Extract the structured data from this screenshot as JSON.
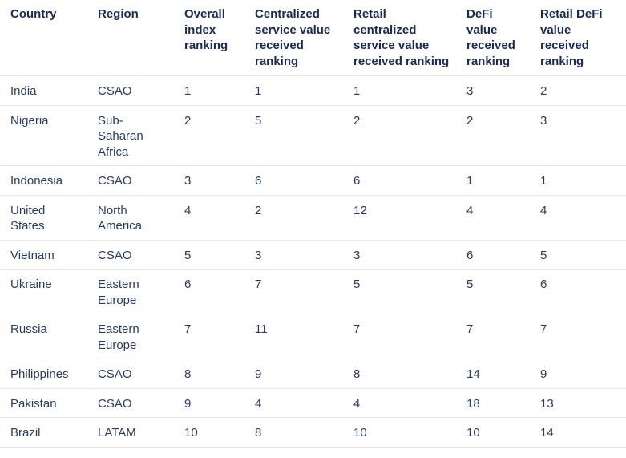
{
  "table": {
    "headers": [
      "Country",
      "Region",
      "Overall index ranking",
      "Centralized service value received ranking",
      "Retail centralized service value received ranking",
      "DeFi value received ranking",
      "Retail DeFi value received ranking"
    ],
    "rows": [
      [
        "India",
        "CSAO",
        "1",
        "1",
        "1",
        "3",
        "2"
      ],
      [
        "Nigeria",
        "Sub-Saharan Africa",
        "2",
        "5",
        "2",
        "2",
        "3"
      ],
      [
        "Indonesia",
        "CSAO",
        "3",
        "6",
        "6",
        "1",
        "1"
      ],
      [
        "United States",
        "North America",
        "4",
        "2",
        "12",
        "4",
        "4"
      ],
      [
        "Vietnam",
        "CSAO",
        "5",
        "3",
        "3",
        "6",
        "5"
      ],
      [
        "Ukraine",
        "Eastern Europe",
        "6",
        "7",
        "5",
        "5",
        "6"
      ],
      [
        "Russia",
        "Eastern Europe",
        "7",
        "11",
        "7",
        "7",
        "7"
      ],
      [
        "Philippines",
        "CSAO",
        "8",
        "9",
        "8",
        "14",
        "9"
      ],
      [
        "Pakistan",
        "CSAO",
        "9",
        "4",
        "4",
        "18",
        "13"
      ],
      [
        "Brazil",
        "LATAM",
        "10",
        "8",
        "10",
        "10",
        "14"
      ]
    ]
  },
  "colors": {
    "header_text": "#1a2a57",
    "body_text": "#2a3a68",
    "row_divider": "#e6e8ee",
    "background": "#ffffff"
  }
}
